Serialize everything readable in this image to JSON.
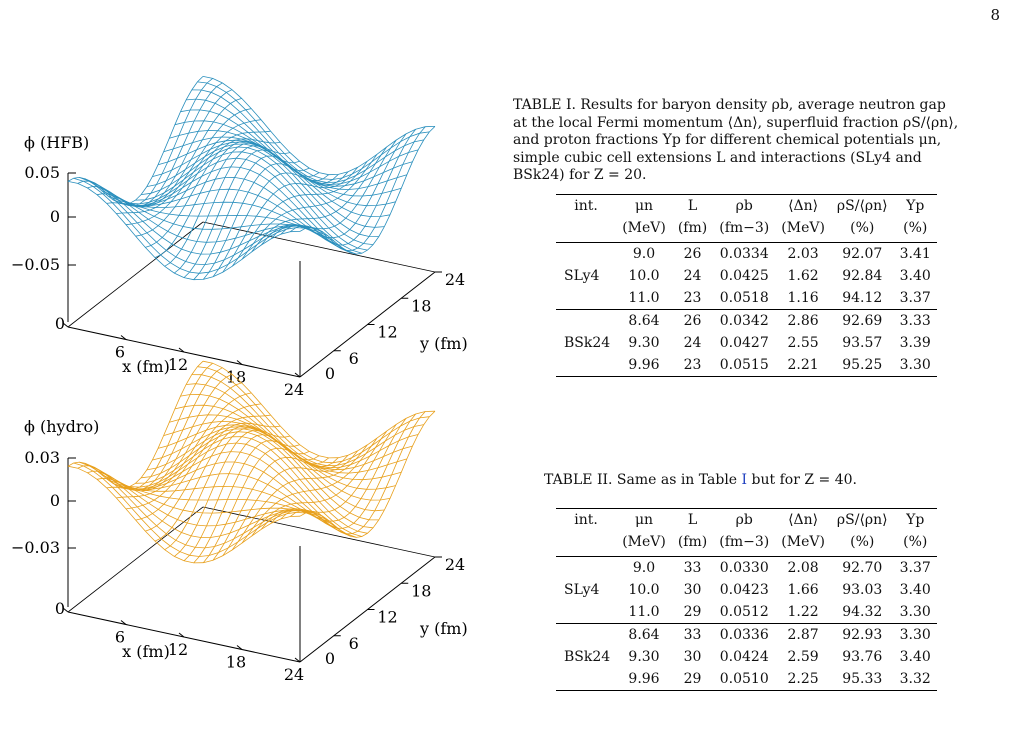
{
  "page_number": "8",
  "figure": {
    "panels": [
      {
        "id": "hfb",
        "zlabel": "ϕ (HFB)",
        "zticks": [
          "0.05",
          "0",
          "−0.05"
        ],
        "xticks": [
          "0",
          "6",
          "12",
          "18",
          "24"
        ],
        "yticks": [
          "0",
          "6",
          "12",
          "18",
          "24"
        ],
        "xlabel": "x (fm)",
        "ylabel": "y (fm)",
        "color": "#2a8fbd"
      },
      {
        "id": "hydro",
        "zlabel": "ϕ (hydro)",
        "zticks": [
          "0.03",
          "0",
          "−0.03"
        ],
        "xticks": [
          "0",
          "6",
          "12",
          "18",
          "24"
        ],
        "yticks": [
          "0",
          "6",
          "12",
          "18",
          "24"
        ],
        "xlabel": "x (fm)",
        "ylabel": "y (fm)",
        "color": "#e8a01c"
      }
    ]
  },
  "table1": {
    "caption": "TABLE I. Results for baryon density ρb, average neutron gap at the local Fermi momentum ⟨Δn⟩, superfluid fraction ρS/⟨ρn⟩, and proton fractions Yp for different chemical potentials μn, simple cubic cell extensions L and interactions (SLy4 and BSk24) for Z = 20.",
    "header1": [
      "int.",
      "μn",
      "L",
      "ρb",
      "⟨Δn⟩",
      "ρS/⟨ρn⟩",
      "Yp"
    ],
    "header2": [
      "",
      "(MeV)",
      "(fm)",
      "(fm−3)",
      "(MeV)",
      "(%)",
      "(%)"
    ],
    "groups": [
      {
        "label": "SLy4",
        "rows": [
          [
            "9.0",
            "26",
            "0.0334",
            "2.03",
            "92.07",
            "3.41"
          ],
          [
            "10.0",
            "24",
            "0.0425",
            "1.62",
            "92.84",
            "3.40"
          ],
          [
            "11.0",
            "23",
            "0.0518",
            "1.16",
            "94.12",
            "3.37"
          ]
        ]
      },
      {
        "label": "BSk24",
        "rows": [
          [
            "8.64",
            "26",
            "0.0342",
            "2.86",
            "92.69",
            "3.33"
          ],
          [
            "9.30",
            "24",
            "0.0427",
            "2.55",
            "93.57",
            "3.39"
          ],
          [
            "9.96",
            "23",
            "0.0515",
            "2.21",
            "95.25",
            "3.30"
          ]
        ]
      }
    ]
  },
  "table2": {
    "caption_pre": "TABLE II. Same as in Table ",
    "caption_ref": "I",
    "caption_post": " but for Z = 40.",
    "header1": [
      "int.",
      "μn",
      "L",
      "ρb",
      "⟨Δn⟩",
      "ρS/⟨ρn⟩",
      "Yp"
    ],
    "header2": [
      "",
      "(MeV)",
      "(fm)",
      "(fm−3)",
      "(MeV)",
      "(%)",
      "(%)"
    ],
    "groups": [
      {
        "label": "SLy4",
        "rows": [
          [
            "9.0",
            "33",
            "0.0330",
            "2.08",
            "92.70",
            "3.37"
          ],
          [
            "10.0",
            "30",
            "0.0423",
            "1.66",
            "93.03",
            "3.40"
          ],
          [
            "11.0",
            "29",
            "0.0512",
            "1.22",
            "94.32",
            "3.30"
          ]
        ]
      },
      {
        "label": "BSk24",
        "rows": [
          [
            "8.64",
            "33",
            "0.0336",
            "2.87",
            "92.93",
            "3.30"
          ],
          [
            "9.30",
            "30",
            "0.0424",
            "2.59",
            "93.76",
            "3.40"
          ],
          [
            "9.96",
            "29",
            "0.0510",
            "2.25",
            "95.33",
            "3.32"
          ]
        ]
      }
    ]
  }
}
